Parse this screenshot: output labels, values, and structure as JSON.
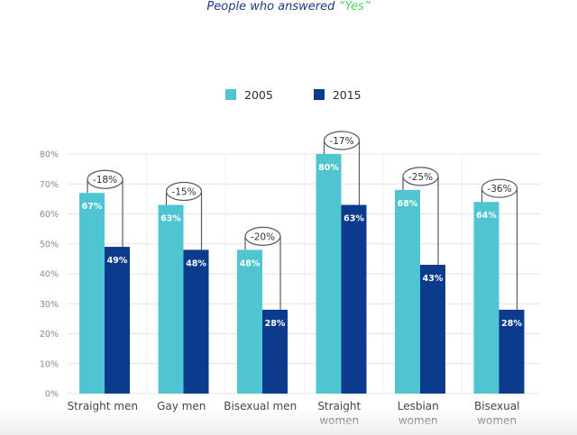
{
  "chart_data": {
    "type": "bar",
    "title": "People who answered",
    "title_highlight": "“Yes”",
    "categories": [
      [
        "Straight men"
      ],
      [
        "Gay men"
      ],
      [
        "Bisexual men"
      ],
      [
        "Straight",
        "women"
      ],
      [
        "Lesbian",
        "women"
      ],
      [
        "Bisexual",
        "women"
      ]
    ],
    "series": [
      {
        "name": "2005",
        "color": "#4ec5d0",
        "values": [
          67,
          63,
          48,
          80,
          68,
          64
        ]
      },
      {
        "name": "2015",
        "color": "#0c3a8c",
        "values": [
          49,
          48,
          28,
          63,
          43,
          28
        ]
      }
    ],
    "change_labels": [
      "-18%",
      "-15%",
      "-20%",
      "-17%",
      "-25%",
      "-36%"
    ],
    "value_suffix": "%",
    "yticks": [
      "0%",
      "10%",
      "20%",
      "30%",
      "40%",
      "50%",
      "60%",
      "70%",
      "80%"
    ],
    "ylim": [
      0,
      80
    ],
    "xlabel": "",
    "ylabel": "",
    "grid": true,
    "legend_position": "top-center",
    "colors": {
      "title": "#1d3a8a",
      "highlight": "#4fd36a",
      "grid": "#e4e4e8",
      "connector": "#555a66"
    }
  }
}
